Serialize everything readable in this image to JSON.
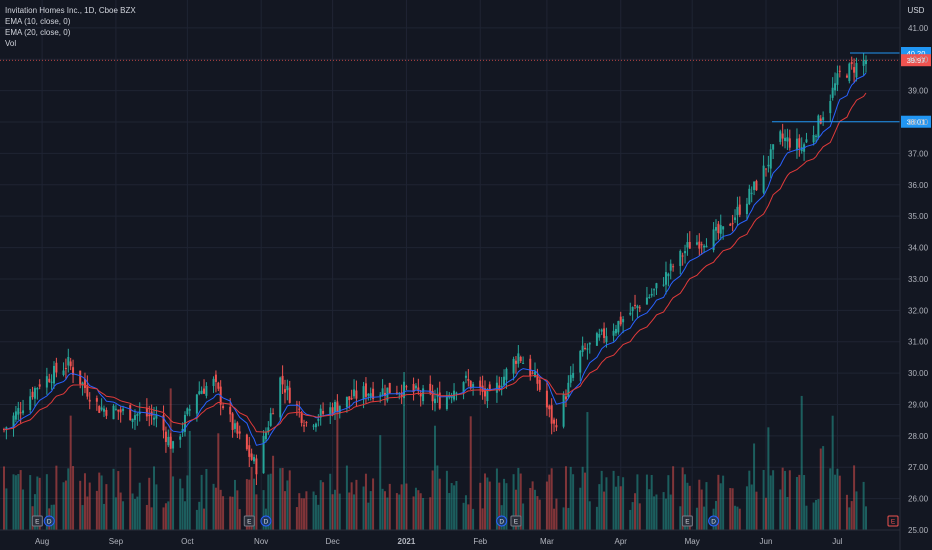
{
  "header": {
    "symbol_title": "Invitation Homes Inc., 1D, Cboe BZX",
    "indicators": [
      "EMA (10, close, 0)",
      "EMA (20, close, 0)",
      "Vol"
    ]
  },
  "axis": {
    "currency": "USD"
  },
  "colors": {
    "background": "#131722",
    "grid": "#1f2433",
    "up": "#26a69a",
    "down": "#ef5350",
    "ema10": "#2962ff",
    "ema20": "#e03a3a",
    "axis_text": "#b2b5be",
    "hline": "#2196f3"
  },
  "chart_data": {
    "type": "candlestick",
    "title": "Invitation Homes Inc., 1D, Cboe BZX",
    "ylabel": "USD",
    "ylim": [
      25,
      41.5
    ],
    "y_ticks": [
      25,
      26,
      27,
      28,
      29,
      30,
      31,
      32,
      33,
      34,
      35,
      36,
      37,
      38,
      39,
      40,
      41
    ],
    "y_tick_labels": [
      "25.00",
      "26.00",
      "27.00",
      "28.00",
      "29.00",
      "30.00",
      "31.00",
      "32.00",
      "33.00",
      "34.00",
      "35.00",
      "36.00",
      "37.00",
      "38.00",
      "39.00",
      "40.00",
      "41.00"
    ],
    "x_ticks": [
      "Aug",
      "Sep",
      "Oct",
      "Nov",
      "Dec",
      "2021",
      "Feb",
      "Mar",
      "Apr",
      "May",
      "Jun",
      "Jul"
    ],
    "x_tick_dates": [
      "2020-08-01",
      "2020-09-01",
      "2020-10-01",
      "2020-11-01",
      "2020-12-01",
      "2021-01-01",
      "2021-02-01",
      "2021-03-01",
      "2021-04-01",
      "2021-05-01",
      "2021-06-01",
      "2021-07-01"
    ],
    "date_range": [
      "2020-07-16",
      "2021-07-13"
    ],
    "close_path": [
      [
        "2020-07-16",
        28.2
      ],
      [
        "2020-07-31",
        29.7
      ],
      [
        "2020-08-12",
        30.3
      ],
      [
        "2020-08-25",
        28.9
      ],
      [
        "2020-09-08",
        28.7
      ],
      [
        "2020-09-18",
        28.6
      ],
      [
        "2020-09-25",
        27.6
      ],
      [
        "2020-10-05",
        29.4
      ],
      [
        "2020-10-12",
        29.7
      ],
      [
        "2020-10-20",
        28.3
      ],
      [
        "2020-10-30",
        27.0
      ],
      [
        "2020-11-09",
        29.8
      ],
      [
        "2020-11-20",
        28.4
      ],
      [
        "2020-12-01",
        28.9
      ],
      [
        "2020-12-14",
        29.4
      ],
      [
        "2020-12-31",
        29.5
      ],
      [
        "2021-01-15",
        29.1
      ],
      [
        "2021-01-25",
        29.8
      ],
      [
        "2021-02-05",
        29.2
      ],
      [
        "2021-02-17",
        30.6
      ],
      [
        "2021-02-25",
        29.7
      ],
      [
        "2021-03-04",
        28.3
      ],
      [
        "2021-03-15",
        30.6
      ],
      [
        "2021-03-31",
        31.6
      ],
      [
        "2021-04-15",
        32.6
      ],
      [
        "2021-04-30",
        34.1
      ],
      [
        "2021-05-14",
        34.5
      ],
      [
        "2021-05-28",
        36.0
      ],
      [
        "2021-06-07",
        37.5
      ],
      [
        "2021-06-16",
        37.2
      ],
      [
        "2021-06-22",
        37.8
      ],
      [
        "2021-07-02",
        39.5
      ],
      [
        "2021-07-13",
        39.97
      ]
    ],
    "series": [
      {
        "name": "EMA (10, close, 0)"
      },
      {
        "name": "EMA (20, close, 0)"
      },
      {
        "name": "Vol"
      }
    ],
    "last_price": 39.97,
    "last_price_label": "39.97",
    "horizontal_lines": [
      {
        "value": 40.2,
        "label": "40.20"
      },
      {
        "value": 38.01,
        "label": "38.01"
      }
    ],
    "event_markers": [
      {
        "date": "2020-07-30",
        "type": "E"
      },
      {
        "date": "2020-08-04",
        "type": "D"
      },
      {
        "date": "2020-10-27",
        "type": "E"
      },
      {
        "date": "2020-11-03",
        "type": "D"
      },
      {
        "date": "2021-02-10",
        "type": "D"
      },
      {
        "date": "2021-02-16",
        "type": "E"
      },
      {
        "date": "2021-04-29",
        "type": "E"
      },
      {
        "date": "2021-05-10",
        "type": "D"
      },
      {
        "date": "2021-07-28",
        "type": "E"
      }
    ]
  }
}
